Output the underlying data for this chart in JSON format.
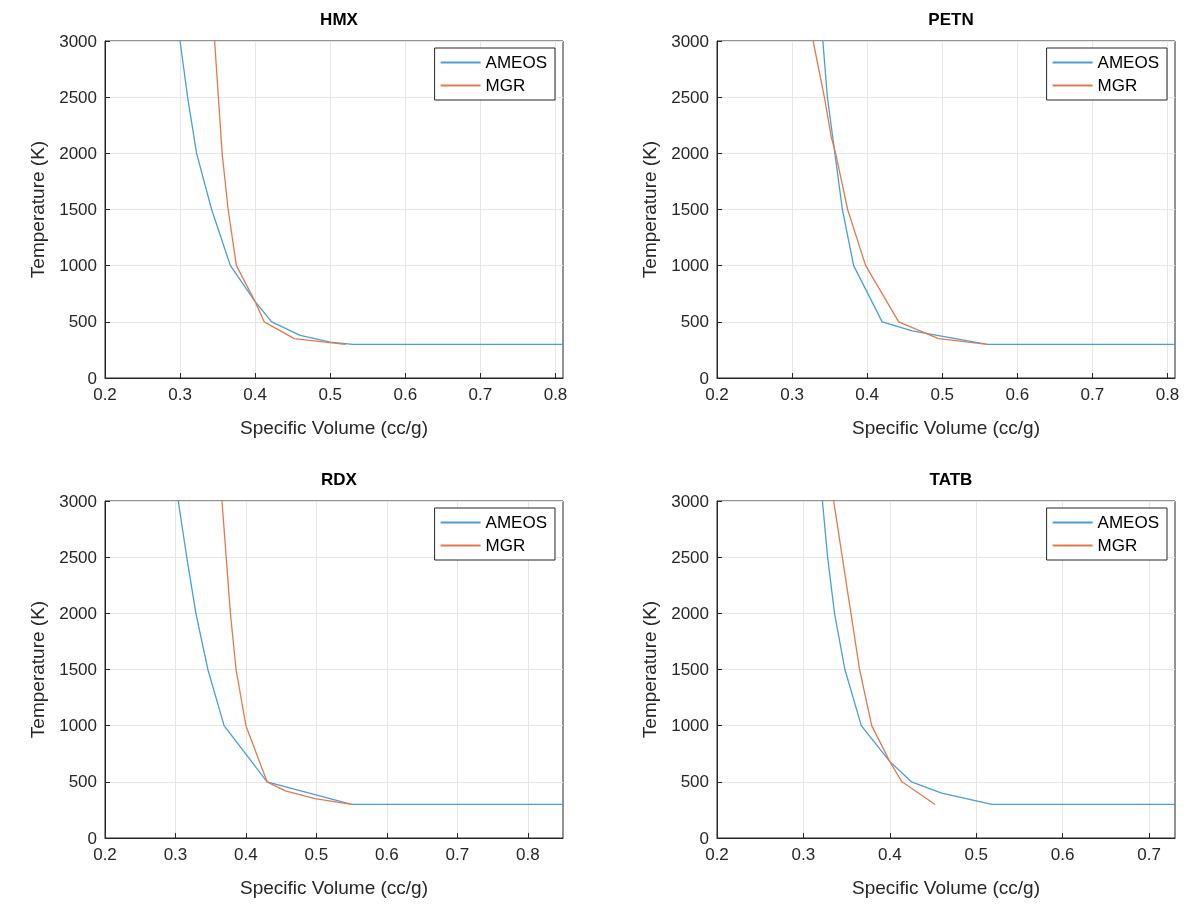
{
  "chart_data": [
    {
      "type": "line",
      "title": "HMX",
      "xlabel": "Specific Volume (cc/g)",
      "ylabel": "Temperature (K)",
      "xlim": [
        0.2,
        0.81
      ],
      "xticks": [
        0.2,
        0.3,
        0.4,
        0.5,
        0.6,
        0.7,
        0.8
      ],
      "ylim": [
        0,
        3000
      ],
      "yticks": [
        0,
        500,
        1000,
        1500,
        2000,
        2500,
        3000
      ],
      "grid": true,
      "legend": "top right",
      "series": [
        {
          "name": "AMEOS",
          "color": "#4a9fd6",
          "x": [
            0.3,
            0.31,
            0.322,
            0.342,
            0.367,
            0.4,
            0.422,
            0.46,
            0.5,
            0.53,
            0.81
          ],
          "values": [
            3000,
            2500,
            2000,
            1500,
            1000,
            680,
            500,
            380,
            320,
            300,
            300
          ]
        },
        {
          "name": "MGR",
          "color": "#e27a4e",
          "x": [
            0.346,
            0.351,
            0.356,
            0.364,
            0.375,
            0.4,
            0.412,
            0.452,
            0.52
          ],
          "values": [
            3000,
            2500,
            2000,
            1500,
            1000,
            680,
            500,
            350,
            300
          ]
        }
      ]
    },
    {
      "type": "line",
      "title": "PETN",
      "xlabel": "Specific Volume (cc/g)",
      "ylabel": "Temperature (K)",
      "xlim": [
        0.2,
        0.81
      ],
      "xticks": [
        0.2,
        0.3,
        0.4,
        0.5,
        0.6,
        0.7,
        0.8
      ],
      "ylim": [
        0,
        3000
      ],
      "yticks": [
        0,
        500,
        1000,
        1500,
        2000,
        2500,
        3000
      ],
      "grid": true,
      "legend": "top right",
      "series": [
        {
          "name": "AMEOS",
          "color": "#4a9fd6",
          "x": [
            0.341,
            0.347,
            0.357,
            0.367,
            0.382,
            0.42,
            0.46,
            0.56,
            0.81
          ],
          "values": [
            3000,
            2500,
            2000,
            1500,
            1000,
            500,
            420,
            300,
            300
          ]
        },
        {
          "name": "MGR",
          "color": "#e27a4e",
          "x": [
            0.328,
            0.343,
            0.352,
            0.358,
            0.374,
            0.398,
            0.442,
            0.495,
            0.56
          ],
          "values": [
            3000,
            2500,
            2150,
            2000,
            1500,
            1000,
            500,
            350,
            300
          ]
        }
      ]
    },
    {
      "type": "line",
      "title": "RDX",
      "xlabel": "Specific Volume (cc/g)",
      "ylabel": "Temperature (K)",
      "xlim": [
        0.2,
        0.85
      ],
      "xticks": [
        0.2,
        0.3,
        0.4,
        0.5,
        0.6,
        0.7,
        0.8
      ],
      "ylim": [
        0,
        3000
      ],
      "yticks": [
        0,
        500,
        1000,
        1500,
        2000,
        2500,
        3000
      ],
      "grid": true,
      "legend": "top right",
      "series": [
        {
          "name": "AMEOS",
          "color": "#4a9fd6",
          "x": [
            0.304,
            0.316,
            0.329,
            0.346,
            0.369,
            0.43,
            0.55,
            0.85
          ],
          "values": [
            3000,
            2500,
            2000,
            1500,
            1000,
            500,
            300,
            300
          ]
        },
        {
          "name": "MGR",
          "color": "#e27a4e",
          "x": [
            0.366,
            0.372,
            0.378,
            0.386,
            0.4,
            0.43,
            0.456,
            0.498,
            0.55
          ],
          "values": [
            3000,
            2500,
            2000,
            1500,
            1000,
            500,
            420,
            350,
            300
          ]
        }
      ]
    },
    {
      "type": "line",
      "title": "TATB",
      "xlabel": "Specific Volume (cc/g)",
      "ylabel": "Temperature (K)",
      "xlim": [
        0.2,
        0.73
      ],
      "xticks": [
        0.2,
        0.3,
        0.4,
        0.5,
        0.6,
        0.7
      ],
      "ylim": [
        0,
        3000
      ],
      "yticks": [
        0,
        500,
        1000,
        1500,
        2000,
        2500,
        3000
      ],
      "grid": true,
      "legend": "top right",
      "series": [
        {
          "name": "AMEOS",
          "color": "#4a9fd6",
          "x": [
            0.322,
            0.328,
            0.336,
            0.348,
            0.367,
            0.4,
            0.425,
            0.46,
            0.518,
            0.73
          ],
          "values": [
            3000,
            2500,
            2000,
            1500,
            1000,
            680,
            500,
            400,
            300,
            300
          ]
        },
        {
          "name": "MGR",
          "color": "#e27a4e",
          "x": [
            0.335,
            0.345,
            0.355,
            0.365,
            0.379,
            0.4,
            0.414,
            0.452
          ],
          "values": [
            3000,
            2500,
            2000,
            1500,
            1000,
            680,
            500,
            300
          ]
        }
      ]
    }
  ]
}
